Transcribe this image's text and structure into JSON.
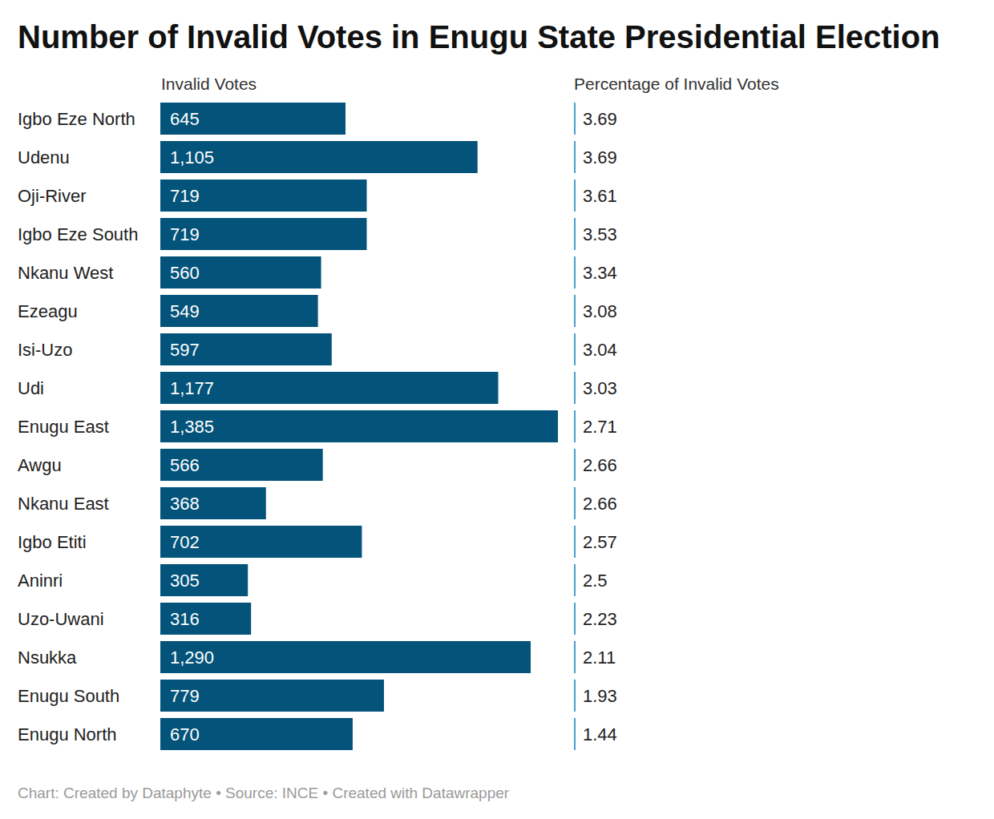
{
  "chart_data": {
    "type": "bar",
    "orientation": "horizontal",
    "title": "Number of Invalid Votes in Enugu State Presidential Election",
    "source": "Chart: Created by Dataphyte • Source: INCE • Created with Datawrapper",
    "categories": [
      "Igbo Eze North",
      "Udenu",
      "Oji-River",
      "Igbo Eze South",
      "Nkanu West",
      "Ezeagu",
      "Isi-Uzo",
      "Udi",
      "Enugu East",
      "Awgu",
      "Nkanu East",
      "Igbo Etiti",
      "Aninri",
      "Uzo-Uwani",
      "Nsukka",
      "Enugu South",
      "Enugu North"
    ],
    "series": [
      {
        "name": "Invalid Votes",
        "type": "bar",
        "color": "#03537a",
        "values": [
          645,
          1105,
          719,
          719,
          560,
          549,
          597,
          1177,
          1385,
          566,
          368,
          702,
          305,
          316,
          1290,
          779,
          670
        ],
        "value_labels": [
          "645",
          "1,105",
          "719",
          "719",
          "560",
          "549",
          "597",
          "1,177",
          "1,385",
          "566",
          "368",
          "702",
          "305",
          "316",
          "1,290",
          "779",
          "670"
        ]
      },
      {
        "name": "Percentage of Invalid Votes",
        "type": "text",
        "color": "#4a9fd0",
        "values": [
          3.69,
          3.69,
          3.61,
          3.53,
          3.34,
          3.08,
          3.04,
          3.03,
          2.71,
          2.66,
          2.66,
          2.57,
          2.5,
          2.23,
          2.11,
          1.93,
          1.44
        ]
      }
    ],
    "data_labels": true,
    "tick_labels": false,
    "grid": false
  }
}
